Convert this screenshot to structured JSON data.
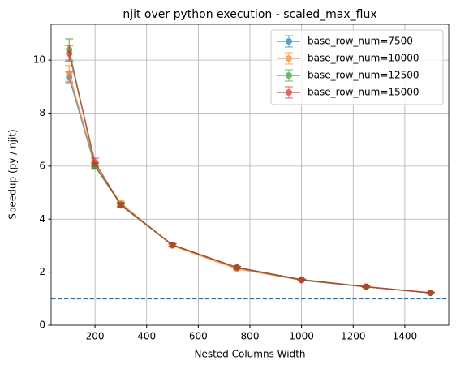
{
  "chart_data": {
    "type": "line",
    "title": "njit over python execution - scaled_max_flux",
    "xlabel": "Nested Columns Width",
    "ylabel": "Speedup (py / njit)",
    "x": [
      100,
      200,
      300,
      500,
      750,
      1000,
      1250,
      1500
    ],
    "series": [
      {
        "name": "base_row_num=7500",
        "color": "#1f77b4",
        "values": [
          9.35,
          6.0,
          4.55,
          3.02,
          2.18,
          1.72,
          1.45,
          1.22
        ],
        "errors": [
          0.2,
          0.1,
          0.08,
          0.05,
          0.04,
          0.03,
          0.03,
          0.03
        ]
      },
      {
        "name": "base_row_num=10000",
        "color": "#ff7f0e",
        "values": [
          9.5,
          6.05,
          4.6,
          3.0,
          2.12,
          1.7,
          1.45,
          1.22
        ],
        "errors": [
          0.3,
          0.1,
          0.08,
          0.05,
          0.04,
          0.03,
          0.03,
          0.03
        ]
      },
      {
        "name": "base_row_num=12500",
        "color": "#2ca02c",
        "values": [
          10.4,
          6.0,
          4.55,
          3.03,
          2.17,
          1.72,
          1.45,
          1.22
        ],
        "errors": [
          0.4,
          0.12,
          0.08,
          0.05,
          0.04,
          0.03,
          0.03,
          0.03
        ]
      },
      {
        "name": "base_row_num=15000",
        "color": "#d62728",
        "values": [
          10.25,
          6.15,
          4.52,
          3.03,
          2.17,
          1.7,
          1.45,
          1.22
        ],
        "errors": [
          0.3,
          0.15,
          0.08,
          0.05,
          0.04,
          0.03,
          0.03,
          0.03
        ]
      }
    ],
    "hline": {
      "y": 1,
      "color": "#1f77b4",
      "style": "dashed"
    },
    "xlim": [
      30,
      1570
    ],
    "ylim": [
      0,
      11.35
    ],
    "xticks": [
      200,
      400,
      600,
      800,
      1000,
      1200,
      1400
    ],
    "yticks": [
      0,
      2,
      4,
      6,
      8,
      10
    ],
    "grid": true,
    "legend": "upper right"
  }
}
